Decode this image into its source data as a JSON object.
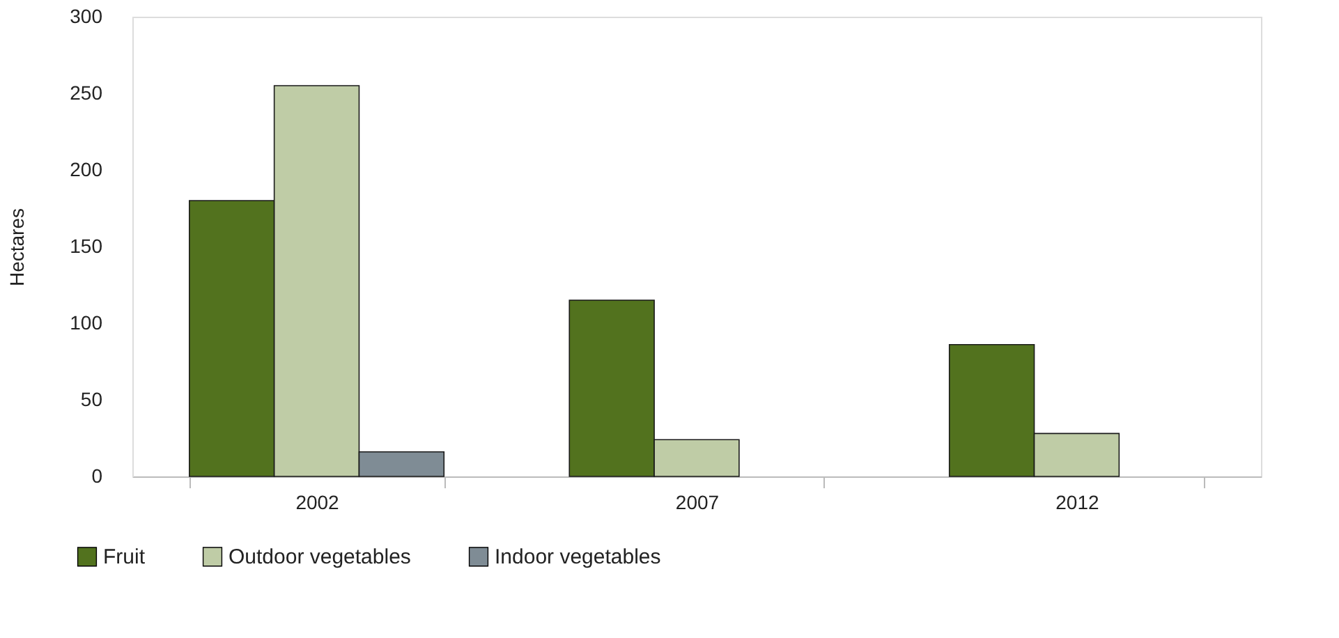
{
  "chart_data": {
    "type": "bar",
    "ylabel": "Hectares",
    "categories": [
      "2002",
      "2007",
      "2012"
    ],
    "series": [
      {
        "name": "Fruit",
        "color": "#52721e",
        "values": [
          180,
          115,
          86
        ]
      },
      {
        "name": "Outdoor vegetables",
        "color": "#bfcca6",
        "values": [
          255,
          24,
          28
        ]
      },
      {
        "name": "Indoor vegetables",
        "color": "#7f8c95",
        "values": [
          16,
          null,
          null
        ]
      }
    ],
    "ylim": [
      0,
      300
    ],
    "yticks": [
      0,
      50,
      100,
      150,
      200,
      250,
      300
    ],
    "grid": false,
    "legend": "bottom left"
  }
}
